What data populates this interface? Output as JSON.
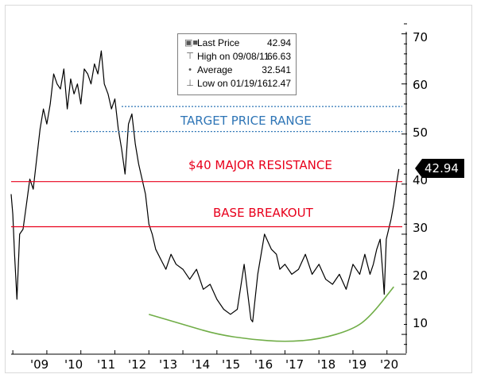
{
  "legend": {
    "rows": [
      {
        "icon": "square-filled-icon",
        "label": "Last Price",
        "value": "42.94"
      },
      {
        "icon": "high-marker-icon",
        "label": "High on 09/08/11",
        "value": "66.63"
      },
      {
        "icon": "average-marker-icon",
        "label": "Average",
        "value": "32.541"
      },
      {
        "icon": "low-marker-icon",
        "label": "Low on 01/19/16",
        "value": "12.47"
      }
    ]
  },
  "annotations": {
    "target": "TARGET PRICE RANGE",
    "resistance": "$40 MAJOR RESISTANCE",
    "breakout": "BASE BREAKOUT"
  },
  "last_price_tag": "42.94",
  "colors": {
    "price": "#000000",
    "target": "#2e75b6",
    "resistance": "#e8001c",
    "base_curve": "#70ad47"
  },
  "chart_data": {
    "type": "line",
    "title": "",
    "xlabel": "",
    "ylabel": "",
    "xlim": [
      2008.95,
      2020.45
    ],
    "ylim": [
      7,
      72
    ],
    "x_tick_values": [
      2009,
      2010,
      2011,
      2012,
      2013,
      2014,
      2015,
      2016,
      2017,
      2018,
      2019,
      2020
    ],
    "x_tick_labels": [
      "'09",
      "'10",
      "'11",
      "'12",
      "'13",
      "'14",
      "'15",
      "'16",
      "'17",
      "'18",
      "'19",
      "'20"
    ],
    "y_ticks": [
      10,
      20,
      30,
      40,
      50,
      60,
      70
    ],
    "y_axis_side": "right",
    "grid": false,
    "legend_position": "top-center",
    "series": [
      {
        "name": "Last Price",
        "x": [
          2008.95,
          2009.0,
          2009.05,
          2009.12,
          2009.2,
          2009.3,
          2009.4,
          2009.5,
          2009.6,
          2009.7,
          2009.8,
          2009.9,
          2010.0,
          2010.1,
          2010.2,
          2010.3,
          2010.4,
          2010.5,
          2010.6,
          2010.7,
          2010.8,
          2010.9,
          2011.0,
          2011.1,
          2011.2,
          2011.3,
          2011.4,
          2011.5,
          2011.6,
          2011.69,
          2011.8,
          2011.9,
          2012.0,
          2012.1,
          2012.2,
          2012.3,
          2012.4,
          2012.5,
          2012.6,
          2012.7,
          2012.8,
          2012.9,
          2013.0,
          2013.1,
          2013.2,
          2013.35,
          2013.5,
          2013.65,
          2013.8,
          2014.0,
          2014.2,
          2014.4,
          2014.6,
          2014.8,
          2015.0,
          2015.2,
          2015.4,
          2015.6,
          2015.8,
          2016.0,
          2016.05,
          2016.2,
          2016.4,
          2016.6,
          2016.75,
          2016.85,
          2017.0,
          2017.2,
          2017.4,
          2017.6,
          2017.8,
          2018.0,
          2018.2,
          2018.4,
          2018.6,
          2018.8,
          2019.0,
          2019.2,
          2019.35,
          2019.5,
          2019.6,
          2019.7,
          2019.8,
          2019.88,
          2019.92,
          2019.98,
          2020.05,
          2020.12,
          2020.2,
          2020.28,
          2020.35
        ],
        "y": [
          38,
          34,
          26,
          17,
          30,
          31,
          36,
          41,
          39,
          45,
          51,
          55,
          52,
          56,
          62,
          60,
          59,
          63,
          55,
          61,
          58,
          60,
          56,
          63,
          62,
          60,
          64,
          62,
          66.6,
          60,
          58,
          55,
          57,
          51,
          47,
          42,
          52,
          54,
          48,
          44,
          41,
          38,
          32,
          30,
          27,
          25,
          23,
          26,
          24,
          23,
          21,
          23,
          19,
          20,
          17,
          15,
          14,
          15,
          24,
          13,
          12.5,
          22,
          30,
          27,
          26,
          23,
          24,
          22,
          23,
          26,
          22,
          24,
          21,
          20,
          22,
          19,
          24,
          22,
          26,
          22,
          24,
          27,
          29,
          22,
          18,
          29,
          31,
          33,
          36,
          40,
          43
        ]
      },
      {
        "name": "Target Price Range Upper",
        "x": [
          2012.2,
          2020.45
        ],
        "y": [
          55.5,
          55.5
        ]
      },
      {
        "name": "Target Price Range Lower",
        "x": [
          2010.7,
          2020.45
        ],
        "y": [
          50.5,
          50.5
        ]
      },
      {
        "name": "$40 Major Resistance",
        "x": [
          2008.95,
          2020.45
        ],
        "y": [
          40.5,
          40.5
        ]
      },
      {
        "name": "Base Breakout",
        "x": [
          2008.95,
          2020.45
        ],
        "y": [
          31.5,
          31.5
        ]
      },
      {
        "name": "Base Curve",
        "x": [
          2013.0,
          2014.0,
          2015.0,
          2016.0,
          2017.0,
          2018.0,
          2019.0,
          2019.5,
          2020.2
        ],
        "y": [
          14,
          12,
          10,
          9,
          8.5,
          9,
          11,
          13.5,
          19.5
        ]
      }
    ],
    "annotations": [
      "TARGET PRICE RANGE",
      "$40 MAJOR RESISTANCE",
      "BASE BREAKOUT"
    ]
  }
}
